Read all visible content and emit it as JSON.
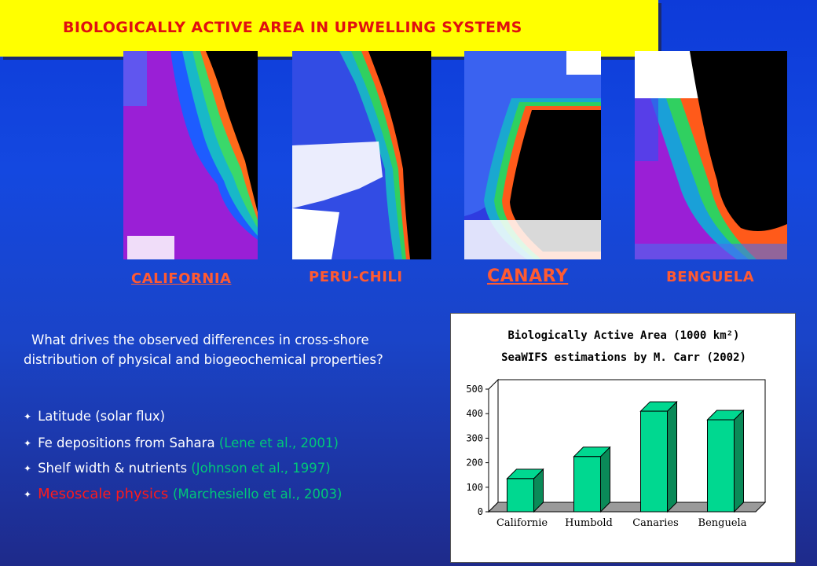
{
  "header": {
    "title": "BIOLOGICALLY ACTIVE AREA IN UPWELLING SYSTEMS",
    "bar_color": "#ffff00",
    "title_color": "#e01010"
  },
  "regions": [
    {
      "label": "CALIFORNIA",
      "link": true
    },
    {
      "label": "PERU-CHILI",
      "link": false
    },
    {
      "label": "CANARY",
      "link": true
    },
    {
      "label": "BENGUELA",
      "link": false
    }
  ],
  "question": "What drives the observed differences in cross-shore distribution of physical and biogeochemical properties?",
  "bullets": [
    {
      "text": "Latitude (solar flux)",
      "cite": ""
    },
    {
      "text": "Fe depositions from Sahara ",
      "cite": "(Lene et al., 2001)"
    },
    {
      "text": "Shelf width & nutrients ",
      "cite": "(Johnson et al., 1997)"
    },
    {
      "text": "Mesoscale physics ",
      "cite": "(Marchesiello et al., 2003)"
    }
  ],
  "chart_data": {
    "type": "bar",
    "title": "Biologically Active Area (1000 km²)",
    "subtitle": "SeaWIFS estimations by M. Carr (2002)",
    "categories": [
      "Californie",
      "Humbold",
      "Canaries",
      "Benguela"
    ],
    "values": [
      135,
      225,
      410,
      375
    ],
    "ylim": [
      0,
      500
    ],
    "yticks": [
      0,
      100,
      200,
      300,
      400,
      500
    ],
    "grid": false,
    "bar_color": "#00d890",
    "bar_side_color": "#0a8a58"
  }
}
